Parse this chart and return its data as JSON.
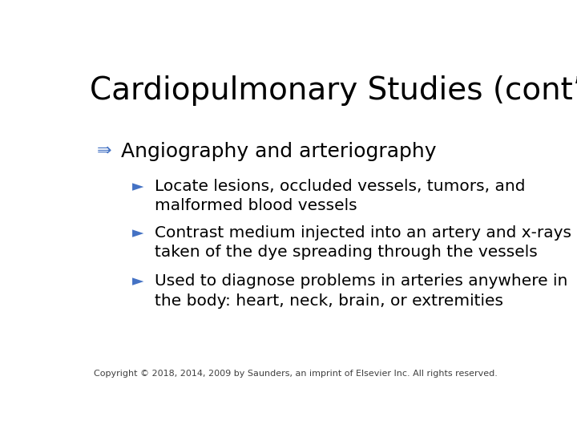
{
  "title": "Cardiopulmonary Studies (cont’d)",
  "title_fontsize": 28,
  "title_color": "#000000",
  "title_font": "DejaVu Sans",
  "background_color": "#ffffff",
  "bullet1_text": "Angiography and arteriography",
  "bullet1_color": "#000000",
  "bullet1_fontsize": 18,
  "bullet1_marker": "⇛",
  "bullet1_marker_color": "#4472c4",
  "sub_bullets": [
    "Locate lesions, occluded vessels, tumors, and\nmalformed blood vessels",
    "Contrast medium injected into an artery and x-rays\ntaken of the dye spreading through the vessels",
    "Used to diagnose problems in arteries anywhere in\nthe body: heart, neck, brain, or extremities"
  ],
  "sub_bullet_fontsize": 14.5,
  "sub_bullet_color": "#000000",
  "sub_bullet_marker": "►",
  "sub_bullet_marker_color": "#4472c4",
  "copyright_text": "Copyright © 2018, 2014, 2009 by Saunders, an imprint of Elsevier Inc. All rights reserved.",
  "copyright_fontsize": 8,
  "copyright_color": "#404040"
}
